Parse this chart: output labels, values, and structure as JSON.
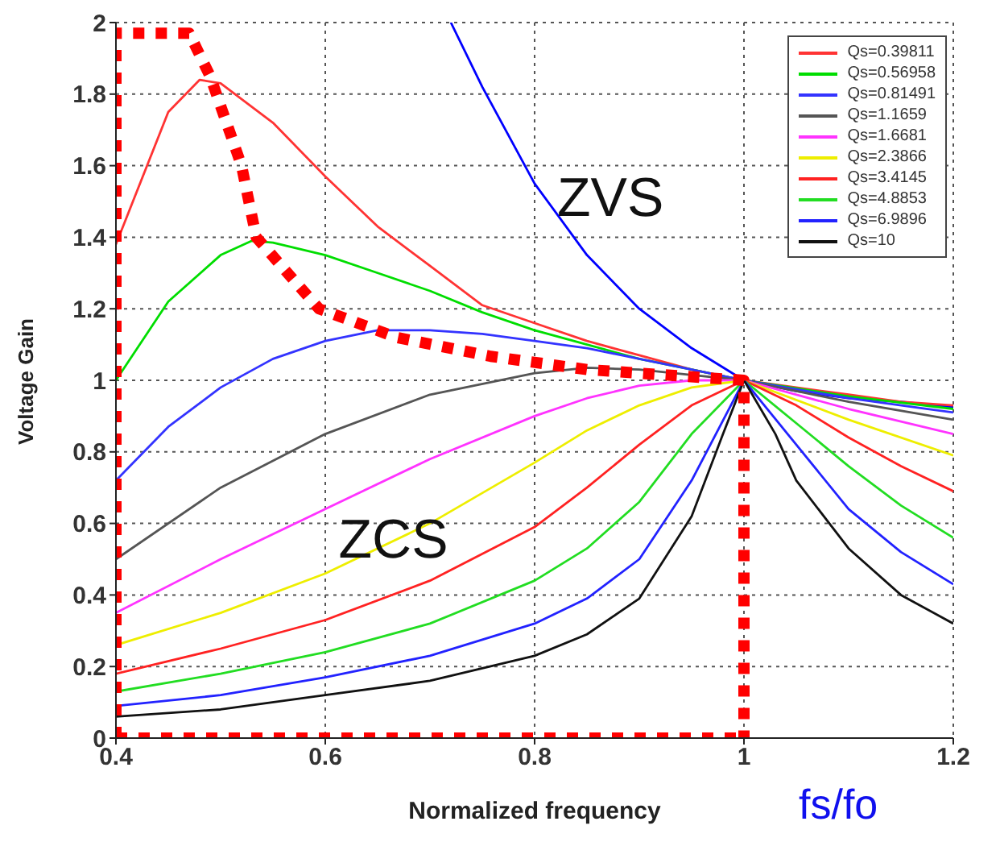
{
  "chart_data": {
    "type": "line",
    "xlabel": "Normalized frequency",
    "ylabel": "Voltage Gain",
    "xlim": [
      0.4,
      1.2
    ],
    "xticks": [
      0.4,
      0.6,
      0.8,
      1,
      1.2
    ],
    "ylim": [
      0,
      2
    ],
    "yticks": [
      0,
      0.2,
      0.4,
      0.6,
      0.8,
      1,
      1.2,
      1.4,
      1.6,
      1.8,
      2
    ],
    "grid": true,
    "legend": "top right",
    "marker": "none",
    "line_style": "solid",
    "annotations": [
      "ZVS",
      {
        "text": "ZCS",
        "x": 0.665,
        "y": 0.56
      },
      "fs/fo"
    ],
    "series": [
      {
        "color": "#0000ff",
        "x": [
          0.72,
          0.75,
          0.8,
          0.85,
          0.9,
          0.95,
          1,
          1.05,
          1.1,
          1.15,
          1.2
        ],
        "values": [
          2.0,
          1.82,
          1.55,
          1.35,
          1.2,
          1.09,
          1.0,
          0.97,
          0.95,
          0.94,
          0.925
        ]
      },
      {
        "name": "Qs=0.39811",
        "color": "#ff3333",
        "x": [
          0.4,
          0.45,
          0.48,
          0.5,
          0.55,
          0.6,
          0.65,
          0.7,
          0.75,
          0.8,
          0.85,
          0.9,
          0.95,
          1,
          1.05,
          1.1,
          1.15,
          1.2
        ],
        "values": [
          1.38,
          1.75,
          1.84,
          1.83,
          1.72,
          1.57,
          1.43,
          1.32,
          1.21,
          1.16,
          1.11,
          1.07,
          1.03,
          1.0,
          0.98,
          0.96,
          0.94,
          0.93
        ]
      },
      {
        "name": "Qs=0.56958",
        "color": "#00dd00",
        "x": [
          0.4,
          0.45,
          0.5,
          0.53,
          0.55,
          0.6,
          0.65,
          0.7,
          0.75,
          0.8,
          0.85,
          0.9,
          0.95,
          1,
          1.1,
          1.2
        ],
        "values": [
          1.0,
          1.22,
          1.35,
          1.39,
          1.385,
          1.35,
          1.3,
          1.25,
          1.19,
          1.14,
          1.1,
          1.06,
          1.03,
          1.0,
          0.955,
          0.92
        ]
      },
      {
        "name": "Qs=0.81491",
        "color": "#3333ff",
        "x": [
          0.4,
          0.45,
          0.5,
          0.55,
          0.6,
          0.65,
          0.7,
          0.75,
          0.8,
          0.85,
          0.9,
          0.95,
          1,
          1.1,
          1.2
        ],
        "values": [
          0.72,
          0.87,
          0.98,
          1.06,
          1.11,
          1.14,
          1.14,
          1.13,
          1.11,
          1.09,
          1.06,
          1.03,
          1.0,
          0.95,
          0.91
        ]
      },
      {
        "name": "Qs=1.1659",
        "color": "#555555",
        "x": [
          0.4,
          0.5,
          0.6,
          0.7,
          0.8,
          0.85,
          0.9,
          0.95,
          1,
          1.1,
          1.2
        ],
        "values": [
          0.5,
          0.7,
          0.85,
          0.96,
          1.02,
          1.035,
          1.03,
          1.015,
          1.0,
          0.94,
          0.89
        ]
      },
      {
        "name": "Qs=1.6681",
        "color": "#ff33ff",
        "x": [
          0.4,
          0.5,
          0.6,
          0.7,
          0.8,
          0.85,
          0.9,
          0.95,
          1,
          1.1,
          1.2
        ],
        "values": [
          0.35,
          0.5,
          0.64,
          0.78,
          0.9,
          0.95,
          0.985,
          1.0,
          1.0,
          0.92,
          0.85
        ]
      },
      {
        "name": "Qs=2.3866",
        "color": "#eeee00",
        "x": [
          0.4,
          0.5,
          0.6,
          0.7,
          0.8,
          0.85,
          0.9,
          0.95,
          1,
          1.1,
          1.2
        ],
        "values": [
          0.26,
          0.35,
          0.46,
          0.6,
          0.77,
          0.86,
          0.93,
          0.98,
          1.0,
          0.89,
          0.79
        ]
      },
      {
        "name": "Qs=3.4145",
        "color": "#ff2222",
        "x": [
          0.4,
          0.5,
          0.6,
          0.7,
          0.8,
          0.85,
          0.9,
          0.95,
          1,
          1.05,
          1.1,
          1.15,
          1.2
        ],
        "values": [
          0.18,
          0.25,
          0.33,
          0.44,
          0.59,
          0.7,
          0.82,
          0.93,
          1.0,
          0.93,
          0.84,
          0.76,
          0.69
        ]
      },
      {
        "name": "Qs=4.8853",
        "color": "#22dd22",
        "x": [
          0.4,
          0.5,
          0.6,
          0.7,
          0.8,
          0.85,
          0.9,
          0.95,
          1,
          1.05,
          1.1,
          1.15,
          1.2
        ],
        "values": [
          0.13,
          0.18,
          0.24,
          0.32,
          0.44,
          0.53,
          0.66,
          0.85,
          1.0,
          0.88,
          0.76,
          0.65,
          0.56
        ]
      },
      {
        "name": "Qs=6.9896",
        "color": "#2222ff",
        "x": [
          0.4,
          0.5,
          0.6,
          0.7,
          0.8,
          0.85,
          0.9,
          0.95,
          1,
          1.05,
          1.1,
          1.15,
          1.2
        ],
        "values": [
          0.09,
          0.12,
          0.17,
          0.23,
          0.32,
          0.39,
          0.5,
          0.72,
          1.0,
          0.82,
          0.64,
          0.52,
          0.43
        ]
      },
      {
        "name": "Qs=10",
        "color": "#111111",
        "x": [
          0.4,
          0.5,
          0.6,
          0.7,
          0.8,
          0.85,
          0.9,
          0.95,
          0.98,
          1,
          1.03,
          1.05,
          1.1,
          1.15,
          1.2
        ],
        "values": [
          0.06,
          0.08,
          0.12,
          0.16,
          0.23,
          0.29,
          0.39,
          0.62,
          0.85,
          1.0,
          0.85,
          0.72,
          0.53,
          0.4,
          0.32
        ]
      },
      {
        "color": "#ff0000",
        "line_style": "dotted",
        "x": [
          0.4,
          0.4,
          0.47,
          0.49,
          0.52,
          0.534,
          0.594,
          0.668,
          0.758,
          0.85,
          1.0,
          1.0
        ],
        "values": [
          0,
          1.97,
          1.97,
          1.85,
          1.6,
          1.4,
          1.2,
          1.12,
          1.067,
          1.03,
          1.0,
          0
        ]
      },
      {
        "color": "#ff0000",
        "line_style": "dotted",
        "x": [
          0.4,
          1.0
        ],
        "values": [
          0,
          0
        ]
      }
    ]
  }
}
